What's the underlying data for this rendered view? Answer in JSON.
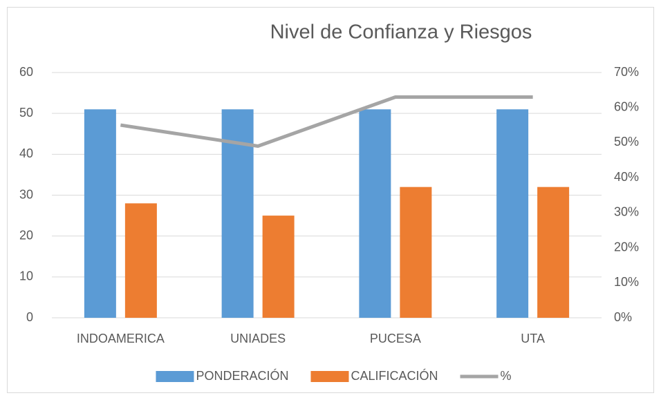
{
  "chart_data": {
    "type": "bar",
    "title": "Nivel de Confianza y Riesgos",
    "categories": [
      "INDOAMERICA",
      "UNIADES",
      "PUCESA",
      "UTA"
    ],
    "series": [
      {
        "name": "PONDERACIÓN",
        "color": "#5b9bd5",
        "values": [
          51,
          51,
          51,
          51
        ]
      },
      {
        "name": "CALIFICACIÓN",
        "color": "#ed7d31",
        "values": [
          28,
          25,
          32,
          32
        ]
      },
      {
        "name": "%",
        "color": "#a5a5a5",
        "type": "line",
        "axis": "y2",
        "values": [
          55,
          49,
          63,
          63
        ]
      }
    ],
    "ylim": [
      0,
      60
    ],
    "yticks": [
      0,
      10,
      20,
      30,
      40,
      50,
      60
    ],
    "y2lim": [
      0,
      70
    ],
    "y2ticks": [
      {
        "value": 0,
        "label": "0%"
      },
      {
        "value": 10,
        "label": "10%"
      },
      {
        "value": 20,
        "label": "20%"
      },
      {
        "value": 30,
        "label": "30%"
      },
      {
        "value": 40,
        "label": "40%"
      },
      {
        "value": 50,
        "label": "50%"
      },
      {
        "value": 60,
        "label": "60%"
      },
      {
        "value": 70,
        "label": "70%"
      }
    ],
    "grid": true,
    "legend": "bottom"
  }
}
